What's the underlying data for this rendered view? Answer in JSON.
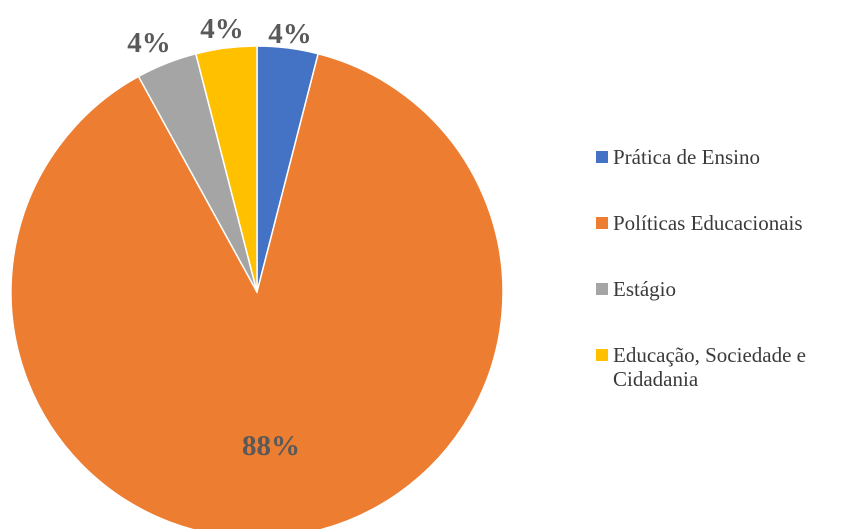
{
  "chart_data": {
    "type": "pie",
    "title": "",
    "categories": [
      "Prática de Ensino",
      "Políticas Educacionais",
      "Estágio",
      "Educação, Sociedade e Cidadania"
    ],
    "values": [
      4,
      88,
      4,
      4
    ],
    "labels": [
      "4%",
      "88%",
      "4%",
      "4%"
    ],
    "colors": [
      "#4472C4",
      "#ED7D31",
      "#A5A5A5",
      "#FFC000"
    ],
    "start_angle_deg": 0,
    "direction": "clockwise",
    "legend_position": "right"
  },
  "legend": {
    "items": [
      {
        "label": "Prática de Ensino",
        "color": "#4472C4"
      },
      {
        "label": "Políticas Educacionais",
        "color": "#ED7D31"
      },
      {
        "label": "Estágio",
        "color": "#A5A5A5"
      },
      {
        "label": "Educação, Sociedade e Cidadania",
        "color": "#FFC000"
      }
    ]
  }
}
